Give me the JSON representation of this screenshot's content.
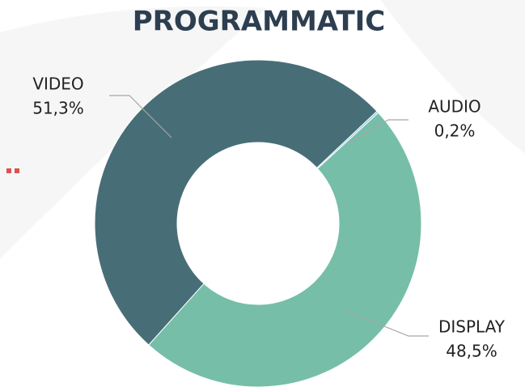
{
  "chart_data": {
    "type": "pie",
    "title": "PROGRAMMATIC",
    "categories": [
      "VIDEO",
      "AUDIO",
      "DISPLAY"
    ],
    "values": [
      51.3,
      0.2,
      48.5
    ],
    "value_labels": [
      "51,3%",
      "0,2%",
      "48,5%"
    ],
    "colors": [
      "#476e77",
      "#8fc8dc",
      "#76bea8"
    ]
  }
}
